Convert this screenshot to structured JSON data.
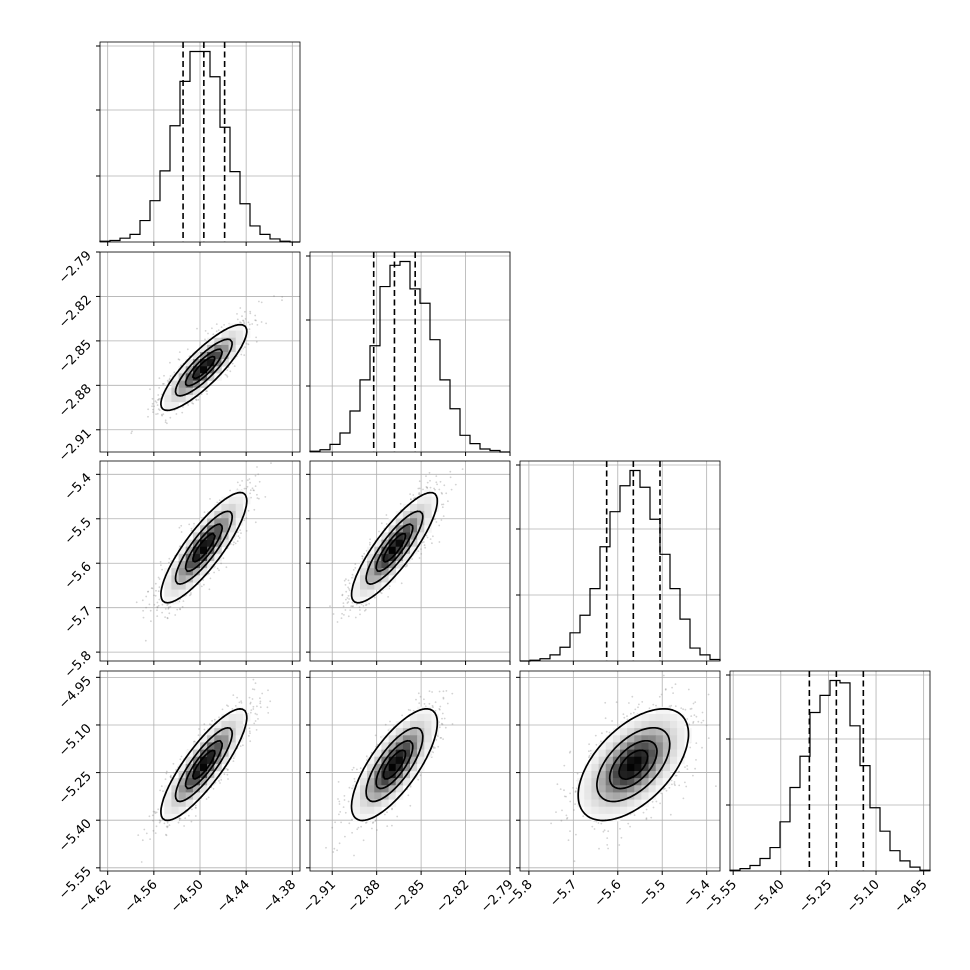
{
  "chart_data": {
    "type": "corner",
    "grid": true,
    "colors": {
      "line": "#000000",
      "grid": "#b0b0b0",
      "scatter": "#808080",
      "background": "#ffffff"
    },
    "parameters": [
      {
        "label": "",
        "range": [
          -4.63,
          -4.37
        ],
        "ticks": [
          -4.62,
          -4.56,
          -4.5,
          -4.44,
          -4.38
        ],
        "tick_labels": [
          "−4.62",
          "−4.56",
          "−4.50",
          "−4.44",
          "−4.38"
        ],
        "quantiles": [
          -4.522,
          -4.495,
          -4.468
        ],
        "mean": -4.495,
        "sd": 0.027
      },
      {
        "label": "",
        "range": [
          -2.925,
          -2.79
        ],
        "ticks": [
          -2.91,
          -2.88,
          -2.85,
          -2.82,
          -2.79
        ],
        "tick_labels": [
          "−2.91",
          "−2.88",
          "−2.85",
          "−2.82",
          "−2.79"
        ],
        "quantiles": [
          -2.882,
          -2.868,
          -2.854
        ],
        "mean": -2.868,
        "sd": 0.014
      },
      {
        "label": "",
        "range": [
          -5.82,
          -5.37
        ],
        "ticks": [
          -5.8,
          -5.7,
          -5.6,
          -5.5,
          -5.4
        ],
        "tick_labels": [
          "−5.8",
          "−5.7",
          "−5.6",
          "−5.5",
          "−5.4"
        ],
        "quantiles": [
          -5.625,
          -5.565,
          -5.505
        ],
        "mean": -5.565,
        "sd": 0.06
      },
      {
        "label": "",
        "range": [
          -5.56,
          -4.93
        ],
        "ticks": [
          -5.55,
          -5.4,
          -5.25,
          -5.1,
          -4.95
        ],
        "tick_labels": [
          "−5.55",
          "−5.40",
          "−5.25",
          "−5.10",
          "−4.95"
        ],
        "quantiles": [
          -5.31,
          -5.225,
          -5.14
        ],
        "mean": -5.225,
        "sd": 0.085
      }
    ],
    "histograms": [
      {
        "param": 0,
        "bin_edges": [
          -4.63,
          -4.617,
          -4.604,
          -4.591,
          -4.578,
          -4.565,
          -4.552,
          -4.539,
          -4.526,
          -4.513,
          -4.5,
          -4.487,
          -4.474,
          -4.461,
          -4.448,
          -4.435,
          -4.422,
          -4.409,
          -4.396,
          -4.383,
          -4.37
        ],
        "counts": [
          1,
          2,
          5,
          10,
          28,
          54,
          93,
          152,
          210,
          249,
          249,
          216,
          150,
          92,
          50,
          21,
          10,
          4,
          1,
          0
        ]
      },
      {
        "param": 1,
        "bin_edges": [
          -2.925,
          -2.91825,
          -2.9115,
          -2.90475,
          -2.898,
          -2.89125,
          -2.8845,
          -2.87775,
          -2.871,
          -2.86425,
          -2.8575,
          -2.85075,
          -2.844,
          -2.83725,
          -2.8305,
          -2.82375,
          -2.817,
          -2.81025,
          -2.8035,
          -2.79675,
          -2.79
        ],
        "counts": [
          1,
          3,
          10,
          25,
          54,
          95,
          140,
          218,
          246,
          251,
          215,
          196,
          148,
          95,
          57,
          22,
          11,
          4,
          2,
          0
        ]
      },
      {
        "param": 2,
        "bin_edges": [
          -5.82,
          -5.7975,
          -5.775,
          -5.7525,
          -5.73,
          -5.7075,
          -5.685,
          -5.6625,
          -5.64,
          -5.6175,
          -5.595,
          -5.5725,
          -5.55,
          -5.5275,
          -5.505,
          -5.4825,
          -5.46,
          -5.4375,
          -5.415,
          -5.3925,
          -5.37
        ],
        "counts": [
          0,
          1,
          3,
          8,
          18,
          37,
          60,
          95,
          150,
          196,
          230,
          250,
          228,
          186,
          140,
          95,
          55,
          17,
          8,
          2
        ]
      },
      {
        "param": 3,
        "bin_edges": [
          -5.56,
          -5.5285,
          -5.497,
          -5.4655,
          -5.434,
          -5.4025,
          -5.371,
          -5.3395,
          -5.308,
          -5.2765,
          -5.245,
          -5.2135,
          -5.182,
          -5.1505,
          -5.119,
          -5.0875,
          -5.056,
          -5.0245,
          -4.993,
          -4.9615,
          -4.93
        ],
        "counts": [
          1,
          3,
          7,
          16,
          30,
          63,
          107,
          147,
          203,
          225,
          244,
          241,
          186,
          135,
          81,
          51,
          26,
          13,
          5,
          1
        ]
      }
    ],
    "pairs": [
      {
        "x_param": 0,
        "y_param": 1,
        "correlation": 0.85
      },
      {
        "x_param": 0,
        "y_param": 2,
        "correlation": 0.85
      },
      {
        "x_param": 1,
        "y_param": 2,
        "correlation": 0.85
      },
      {
        "x_param": 0,
        "y_param": 3,
        "correlation": 0.85
      },
      {
        "x_param": 1,
        "y_param": 3,
        "correlation": 0.75
      },
      {
        "x_param": 2,
        "y_param": 3,
        "correlation": 0.55
      }
    ],
    "contour_levels": [
      0.118,
      0.393,
      0.675,
      0.865
    ]
  }
}
